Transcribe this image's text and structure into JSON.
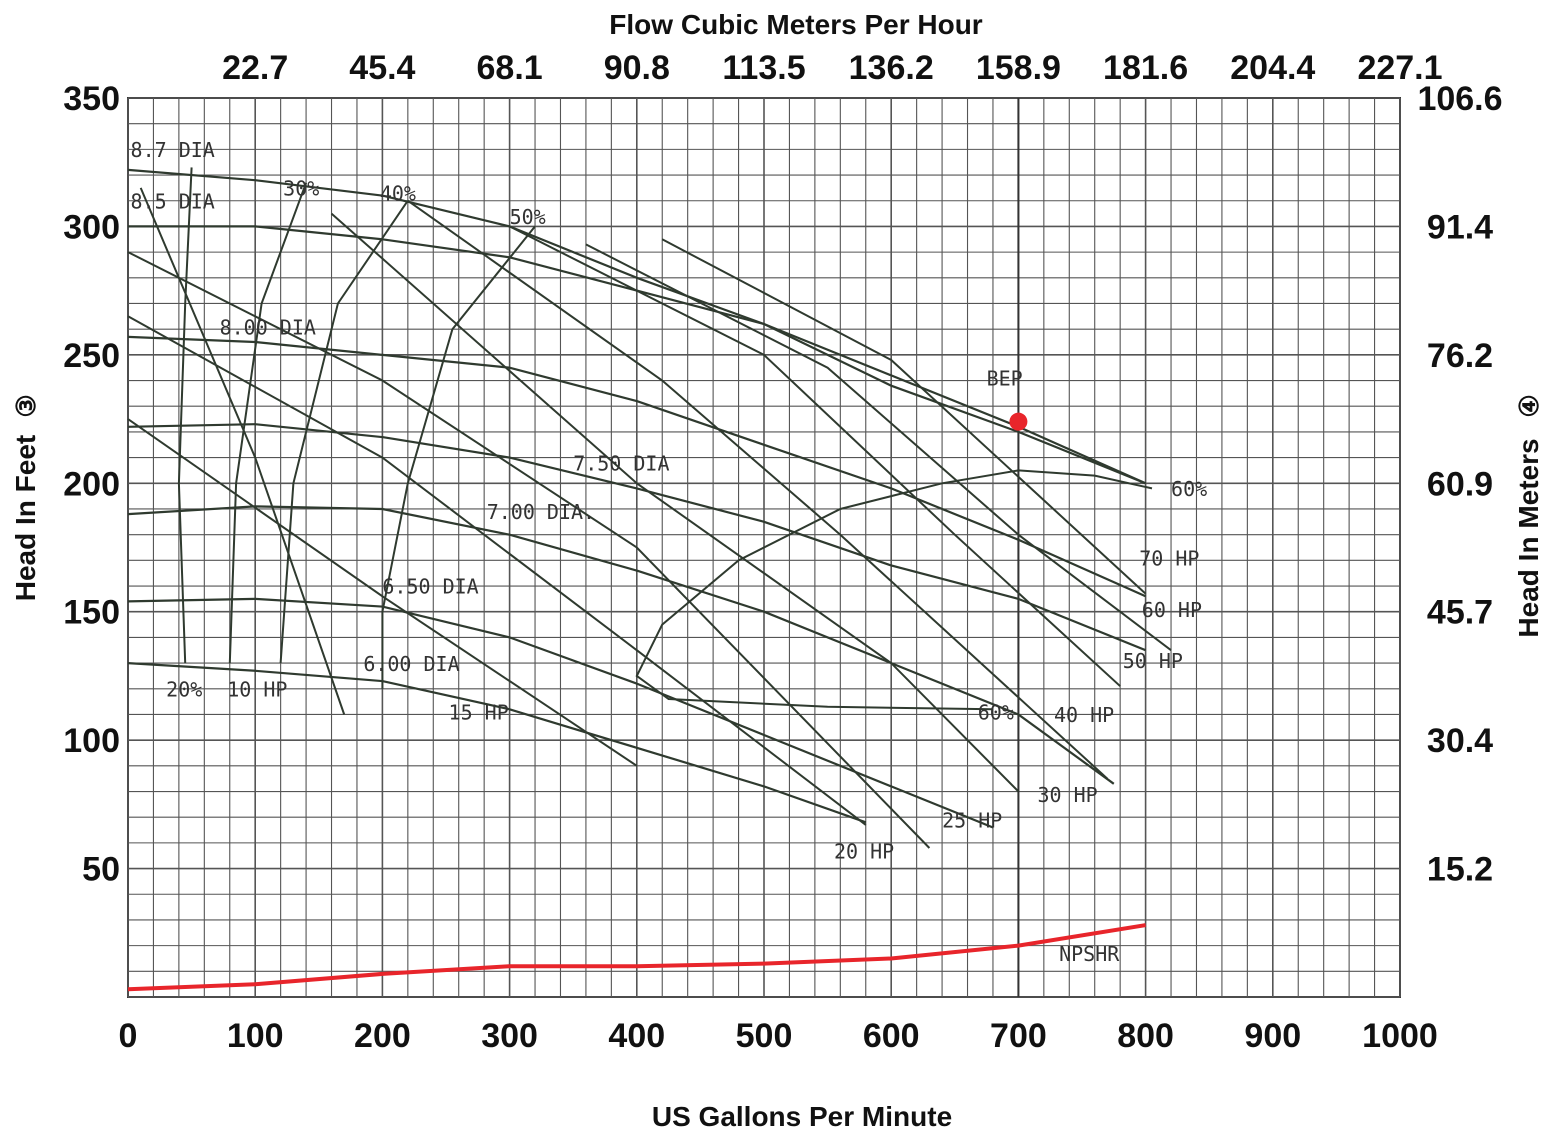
{
  "chart_data": {
    "type": "line",
    "top_axis_title": "Flow Cubic Meters Per Hour",
    "xlabel": "US Gallons Per Minute",
    "ylabel_left": "Head In Feet",
    "ylabel_left_marker": "③",
    "ylabel_right": "Head In Meters",
    "ylabel_right_marker": "④",
    "xlim": [
      0,
      1000
    ],
    "ylim": [
      0,
      350
    ],
    "grid": true,
    "x_ticks": [
      "0",
      "100",
      "200",
      "300",
      "400",
      "500",
      "600",
      "700",
      "800",
      "900",
      "1000"
    ],
    "top_ticks": [
      "22.7",
      "45.4",
      "68.1",
      "90.8",
      "113.5",
      "136.2",
      "158.9",
      "181.6",
      "204.4",
      "227.1"
    ],
    "left_ticks": [
      "350",
      "300",
      "250",
      "200",
      "150",
      "100",
      "50"
    ],
    "right_ticks": [
      "106.6",
      "91.4",
      "76.2",
      "60.9",
      "45.7",
      "30.4",
      "15.2"
    ],
    "impeller_curves": [
      {
        "label": "8.7 DIA",
        "points": [
          [
            0,
            322
          ],
          [
            100,
            318
          ],
          [
            200,
            312
          ],
          [
            300,
            300
          ],
          [
            400,
            280
          ],
          [
            500,
            262
          ],
          [
            600,
            238
          ],
          [
            700,
            220
          ],
          [
            800,
            200
          ]
        ]
      },
      {
        "label": "8.5 DIA",
        "points": [
          [
            0,
            300
          ],
          [
            100,
            300
          ],
          [
            200,
            295
          ],
          [
            300,
            288
          ],
          [
            400,
            275
          ],
          [
            500,
            262
          ],
          [
            600,
            242
          ],
          [
            700,
            222
          ],
          [
            800,
            200
          ]
        ]
      },
      {
        "label": "8.00 DIA",
        "points": [
          [
            0,
            257
          ],
          [
            100,
            255
          ],
          [
            200,
            250
          ],
          [
            300,
            245
          ],
          [
            400,
            232
          ],
          [
            500,
            215
          ],
          [
            600,
            198
          ],
          [
            700,
            178
          ],
          [
            800,
            156
          ]
        ]
      },
      {
        "label": "7.50 DIA",
        "points": [
          [
            0,
            222
          ],
          [
            100,
            223
          ],
          [
            200,
            218
          ],
          [
            300,
            210
          ],
          [
            400,
            198
          ],
          [
            500,
            185
          ],
          [
            600,
            168
          ],
          [
            700,
            155
          ],
          [
            800,
            135
          ]
        ]
      },
      {
        "label": "7.00 DIA.",
        "points": [
          [
            0,
            188
          ],
          [
            100,
            191
          ],
          [
            200,
            190
          ],
          [
            300,
            180
          ],
          [
            400,
            166
          ],
          [
            500,
            150
          ],
          [
            600,
            130
          ],
          [
            700,
            110
          ],
          [
            775,
            83
          ]
        ]
      },
      {
        "label": "6.50 DIA",
        "points": [
          [
            0,
            154
          ],
          [
            100,
            155
          ],
          [
            200,
            152
          ],
          [
            300,
            140
          ],
          [
            400,
            122
          ],
          [
            500,
            102
          ],
          [
            600,
            82
          ],
          [
            680,
            66
          ]
        ]
      },
      {
        "label": "6.00 DIA",
        "points": [
          [
            0,
            130
          ],
          [
            100,
            127
          ],
          [
            200,
            123
          ],
          [
            300,
            112
          ],
          [
            400,
            97
          ],
          [
            500,
            82
          ],
          [
            580,
            68
          ]
        ]
      }
    ],
    "efficiency_curves": [
      {
        "label": "20%",
        "points": [
          [
            50,
            323
          ],
          [
            45,
            270
          ],
          [
            40,
            200
          ],
          [
            45,
            130
          ]
        ]
      },
      {
        "label": "30%",
        "points": [
          [
            140,
            317
          ],
          [
            105,
            270
          ],
          [
            85,
            200
          ],
          [
            80,
            130
          ]
        ]
      },
      {
        "label": "40%",
        "points": [
          [
            220,
            310
          ],
          [
            165,
            270
          ],
          [
            130,
            200
          ],
          [
            120,
            130
          ]
        ]
      },
      {
        "label": "50%",
        "points": [
          [
            320,
            300
          ],
          [
            255,
            260
          ],
          [
            220,
            200
          ],
          [
            200,
            150
          ],
          [
            200,
            120
          ]
        ]
      },
      {
        "label": "60%",
        "points": [
          [
            805,
            198
          ],
          [
            760,
            203
          ],
          [
            700,
            205
          ],
          [
            640,
            200
          ],
          [
            560,
            190
          ],
          [
            480,
            170
          ],
          [
            420,
            145
          ],
          [
            400,
            125
          ],
          [
            425,
            116
          ],
          [
            550,
            113
          ],
          [
            680,
            112
          ]
        ]
      }
    ],
    "power_curves": [
      {
        "label": "10 HP",
        "points": [
          [
            10,
            315
          ],
          [
            100,
            210
          ],
          [
            170,
            110
          ]
        ]
      },
      {
        "label": "15 HP",
        "points": [
          [
            0,
            225
          ],
          [
            200,
            156
          ],
          [
            400,
            90
          ]
        ]
      },
      {
        "label": "20 HP",
        "points": [
          [
            0,
            265
          ],
          [
            200,
            210
          ],
          [
            400,
            135
          ],
          [
            580,
            67
          ]
        ]
      },
      {
        "label": "25 HP",
        "points": [
          [
            0,
            290
          ],
          [
            200,
            240
          ],
          [
            400,
            175
          ],
          [
            630,
            58
          ]
        ]
      },
      {
        "label": "30 HP",
        "points": [
          [
            160,
            305
          ],
          [
            400,
            200
          ],
          [
            600,
            130
          ],
          [
            700,
            80
          ]
        ]
      },
      {
        "label": "40 HP",
        "points": [
          [
            220,
            310
          ],
          [
            420,
            240
          ],
          [
            560,
            180
          ],
          [
            770,
            85
          ]
        ]
      },
      {
        "label": "50 HP",
        "points": [
          [
            300,
            300
          ],
          [
            500,
            250
          ],
          [
            650,
            180
          ],
          [
            780,
            121
          ]
        ]
      },
      {
        "label": "60 HP",
        "points": [
          [
            360,
            293
          ],
          [
            550,
            245
          ],
          [
            700,
            180
          ],
          [
            820,
            135
          ]
        ]
      },
      {
        "label": "70 HP",
        "points": [
          [
            420,
            295
          ],
          [
            600,
            248
          ],
          [
            800,
            157
          ]
        ]
      }
    ],
    "npshr": {
      "label": "NPSHR",
      "color": "#e8252b",
      "points": [
        [
          0,
          3
        ],
        [
          100,
          5
        ],
        [
          200,
          9
        ],
        [
          300,
          12
        ],
        [
          400,
          12
        ],
        [
          500,
          13
        ],
        [
          600,
          15
        ],
        [
          700,
          20
        ],
        [
          800,
          28
        ]
      ]
    },
    "bep": {
      "label": "BEP",
      "flow": 700,
      "head": 224,
      "color": "#e8252b"
    },
    "hand_labels": [
      {
        "text": "8.7 DIA",
        "x": 2,
        "y": 327
      },
      {
        "text": "8.5 DIA",
        "x": 2,
        "y": 307
      },
      {
        "text": "30%",
        "x": 122,
        "y": 312
      },
      {
        "text": "40%",
        "x": 198,
        "y": 310
      },
      {
        "text": "50%",
        "x": 300,
        "y": 301
      },
      {
        "text": "8.00 DIA",
        "x": 72,
        "y": 258
      },
      {
        "text": "BEP",
        "x": 675,
        "y": 238
      },
      {
        "text": "7.50 DIA",
        "x": 350,
        "y": 205
      },
      {
        "text": "60%",
        "x": 820,
        "y": 195
      },
      {
        "text": "7.00 DIA.",
        "x": 282,
        "y": 186
      },
      {
        "text": "70 HP",
        "x": 795,
        "y": 168
      },
      {
        "text": "6.50 DIA",
        "x": 200,
        "y": 157
      },
      {
        "text": "60 HP",
        "x": 797,
        "y": 148
      },
      {
        "text": "6.00 DIA",
        "x": 185,
        "y": 127
      },
      {
        "text": "50 HP",
        "x": 782,
        "y": 128
      },
      {
        "text": "20%",
        "x": 30,
        "y": 117
      },
      {
        "text": "10 HP",
        "x": 78,
        "y": 117
      },
      {
        "text": "15 HP",
        "x": 252,
        "y": 108
      },
      {
        "text": "60%",
        "x": 668,
        "y": 108
      },
      {
        "text": "40 HP",
        "x": 728,
        "y": 107
      },
      {
        "text": "30 HP",
        "x": 715,
        "y": 76
      },
      {
        "text": "25 HP",
        "x": 640,
        "y": 66
      },
      {
        "text": "20 HP",
        "x": 555,
        "y": 54
      },
      {
        "text": "NPSHR",
        "x": 732,
        "y": 14
      }
    ]
  }
}
